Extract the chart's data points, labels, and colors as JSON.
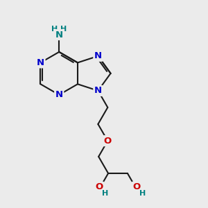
{
  "bg_color": "#ebebeb",
  "bond_color": "#1a1a1a",
  "N_color": "#0000cc",
  "O_color": "#cc0000",
  "NH_color": "#008080",
  "line_width": 1.5,
  "font_size_atom": 9.5,
  "font_size_H": 8.0,
  "xlim": [
    0,
    10
  ],
  "ylim": [
    0,
    10
  ]
}
